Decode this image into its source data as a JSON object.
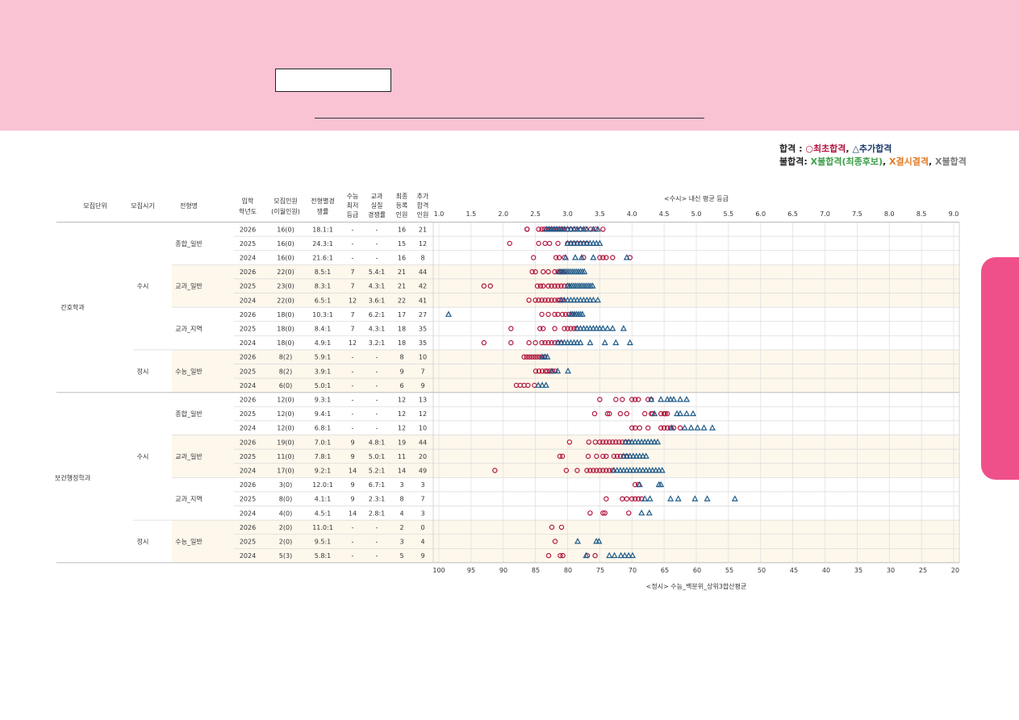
{
  "legend": {
    "pass_label": "합격",
    "pass_sep": " :",
    "circle_symbol": "○",
    "initial_pass": "최초합격",
    "comma": ",",
    "triangle_symbol": "△",
    "additional_pass": "추가합격",
    "fail_label": "불합격:",
    "fail_waitlist": "X불합격(최종후보)",
    "fail_absent": "X결시결격",
    "fail_plain": "X불합격"
  },
  "table": {
    "headers": {
      "unit": "모집단위",
      "period": "모집시기",
      "type": "전형명",
      "year": [
        "입학",
        "학년도"
      ],
      "quota": [
        "모집인원",
        "(이월인원)"
      ],
      "ratio": [
        "전형별경",
        "쟁률"
      ],
      "minimum": [
        "수능",
        "최저",
        "등급"
      ],
      "real_ratio": [
        "교과",
        "실질",
        "경쟁률"
      ],
      "final": [
        "최종",
        "등록",
        "인원"
      ],
      "additional": [
        "추가",
        "합격",
        "인원"
      ]
    },
    "departments": [
      {
        "name": "간호학과",
        "periods": [
          {
            "name": "수시",
            "types": [
              {
                "name": "종합_일반",
                "rows": [
                  {
                    "year": "2026",
                    "quota": "16(0)",
                    "ratio": "18.1:1",
                    "min": "-",
                    "real": "-",
                    "final": "16",
                    "add": "21"
                  },
                  {
                    "year": "2025",
                    "quota": "16(0)",
                    "ratio": "24.3:1",
                    "min": "-",
                    "real": "-",
                    "final": "15",
                    "add": "12"
                  },
                  {
                    "year": "2024",
                    "quota": "16(0)",
                    "ratio": "21.6:1",
                    "min": "-",
                    "real": "-",
                    "final": "16",
                    "add": "8"
                  }
                ]
              },
              {
                "name": "교과_일반",
                "rows": [
                  {
                    "year": "2026",
                    "quota": "22(0)",
                    "ratio": "8.5:1",
                    "min": "7",
                    "real": "5.4:1",
                    "final": "21",
                    "add": "44"
                  },
                  {
                    "year": "2025",
                    "quota": "23(0)",
                    "ratio": "8.3:1",
                    "min": "7",
                    "real": "4.3:1",
                    "final": "21",
                    "add": "42"
                  },
                  {
                    "year": "2024",
                    "quota": "22(0)",
                    "ratio": "6.5:1",
                    "min": "12",
                    "real": "3.6:1",
                    "final": "22",
                    "add": "41"
                  }
                ]
              },
              {
                "name": "교과_지역",
                "rows": [
                  {
                    "year": "2026",
                    "quota": "18(0)",
                    "ratio": "10.3:1",
                    "min": "7",
                    "real": "6.2:1",
                    "final": "17",
                    "add": "27"
                  },
                  {
                    "year": "2025",
                    "quota": "18(0)",
                    "ratio": "8.4:1",
                    "min": "7",
                    "real": "4.3:1",
                    "final": "18",
                    "add": "35"
                  },
                  {
                    "year": "2024",
                    "quota": "18(0)",
                    "ratio": "4.9:1",
                    "min": "12",
                    "real": "3.2:1",
                    "final": "18",
                    "add": "35"
                  }
                ]
              }
            ]
          },
          {
            "name": "정시",
            "types": [
              {
                "name": "수능_일반",
                "rows": [
                  {
                    "year": "2026",
                    "quota": "8(2)",
                    "ratio": "5.9:1",
                    "min": "-",
                    "real": "-",
                    "final": "8",
                    "add": "10"
                  },
                  {
                    "year": "2025",
                    "quota": "8(2)",
                    "ratio": "3.9:1",
                    "min": "-",
                    "real": "-",
                    "final": "9",
                    "add": "7"
                  },
                  {
                    "year": "2024",
                    "quota": "6(0)",
                    "ratio": "5.0:1",
                    "min": "-",
                    "real": "-",
                    "final": "6",
                    "add": "9"
                  }
                ]
              }
            ]
          }
        ]
      },
      {
        "name": "보건행정학과",
        "periods": [
          {
            "name": "수시",
            "types": [
              {
                "name": "종합_일반",
                "rows": [
                  {
                    "year": "2026",
                    "quota": "12(0)",
                    "ratio": "9.3:1",
                    "min": "-",
                    "real": "-",
                    "final": "12",
                    "add": "13"
                  },
                  {
                    "year": "2025",
                    "quota": "12(0)",
                    "ratio": "9.4:1",
                    "min": "-",
                    "real": "-",
                    "final": "12",
                    "add": "12"
                  },
                  {
                    "year": "2024",
                    "quota": "12(0)",
                    "ratio": "6.8:1",
                    "min": "-",
                    "real": "-",
                    "final": "12",
                    "add": "10"
                  }
                ]
              },
              {
                "name": "교과_일반",
                "rows": [
                  {
                    "year": "2026",
                    "quota": "19(0)",
                    "ratio": "7.0:1",
                    "min": "9",
                    "real": "4.8:1",
                    "final": "19",
                    "add": "44"
                  },
                  {
                    "year": "2025",
                    "quota": "11(0)",
                    "ratio": "7.8:1",
                    "min": "9",
                    "real": "5.0:1",
                    "final": "11",
                    "add": "20"
                  },
                  {
                    "year": "2024",
                    "quota": "17(0)",
                    "ratio": "9.2:1",
                    "min": "14",
                    "real": "5.2:1",
                    "final": "14",
                    "add": "49"
                  }
                ]
              },
              {
                "name": "교과_지역",
                "rows": [
                  {
                    "year": "2026",
                    "quota": "3(0)",
                    "ratio": "12.0:1",
                    "min": "9",
                    "real": "6.7:1",
                    "final": "3",
                    "add": "3"
                  },
                  {
                    "year": "2025",
                    "quota": "8(0)",
                    "ratio": "4.1:1",
                    "min": "9",
                    "real": "2.3:1",
                    "final": "8",
                    "add": "7"
                  },
                  {
                    "year": "2024",
                    "quota": "4(0)",
                    "ratio": "4.5:1",
                    "min": "14",
                    "real": "2.8:1",
                    "final": "4",
                    "add": "3"
                  }
                ]
              }
            ]
          },
          {
            "name": "정시",
            "types": [
              {
                "name": "수능_일반",
                "rows": [
                  {
                    "year": "2026",
                    "quota": "2(0)",
                    "ratio": "11.0:1",
                    "min": "-",
                    "real": "-",
                    "final": "2",
                    "add": "0"
                  },
                  {
                    "year": "2025",
                    "quota": "2(0)",
                    "ratio": "9.5:1",
                    "min": "-",
                    "real": "-",
                    "final": "3",
                    "add": "4"
                  },
                  {
                    "year": "2024",
                    "quota": "5(3)",
                    "ratio": "5.8:1",
                    "min": "-",
                    "real": "-",
                    "final": "5",
                    "add": "9"
                  }
                ]
              }
            ]
          }
        ]
      }
    ]
  },
  "colors": {
    "banner": "#f9c3d4",
    "side_tab": "#f0508a",
    "initial_pass": "#b0173e",
    "additional_pass": "#1f5b8a",
    "band": "#fdf7ec"
  },
  "chart_data": {
    "type": "scatter",
    "title": "<수시> 내신 평균 등급",
    "xlabel_bottom": "<정시> 수능_백분위_상위3합산평균",
    "top_axis": {
      "min": 1.0,
      "max": 9.0,
      "ticks": [
        "1.0",
        "1.5",
        "2.0",
        "2.5",
        "3.0",
        "3.5",
        "4.0",
        "4.5",
        "5.0",
        "5.5",
        "6.0",
        "6.5",
        "7.0",
        "7.5",
        "8.0",
        "8.5",
        "9.0"
      ]
    },
    "bottom_axis": {
      "min": 100,
      "max": 20,
      "ticks": [
        "100",
        "95",
        "90",
        "85",
        "80",
        "75",
        "70",
        "65",
        "60",
        "55",
        "50",
        "45",
        "40",
        "35",
        "30",
        "25",
        "20"
      ]
    },
    "grid": true,
    "row_units": "suspi rows in 내신 grade (top axis); jeongsi rows in 백분위 (bottom axis)",
    "rows": [
      {
        "label": "간호학과 수시 종합_일반 2026",
        "initial": [
          2.95,
          2.37,
          2.37,
          2.55,
          2.6,
          2.64,
          2.68,
          2.72,
          2.76,
          2.8,
          2.84,
          2.88,
          2.92,
          3.0,
          3.05,
          3.12,
          3.2,
          3.28,
          3.36,
          3.44,
          3.55
        ],
        "additional": [
          2.67,
          2.71,
          2.75,
          2.79,
          2.83,
          2.87,
          2.91,
          2.95,
          3.0,
          3.05,
          3.1,
          3.15,
          3.2,
          3.25,
          3.3,
          3.4,
          3.47
        ]
      },
      {
        "label": "간호학과 수시 종합_일반 2025",
        "initial": [
          2.1,
          2.55,
          2.65,
          2.72,
          2.85,
          3.0,
          3.05,
          3.1,
          3.15,
          3.2,
          3.25,
          3.3
        ],
        "additional": [
          3.0,
          3.05,
          3.1,
          3.15,
          3.2,
          3.25,
          3.3,
          3.35,
          3.4,
          3.45,
          3.5
        ]
      },
      {
        "label": "간호학과 수시 종합_일반 2024",
        "initial": [
          2.47,
          2.82,
          2.87,
          2.95,
          3.25,
          3.5,
          3.55,
          3.6,
          3.7,
          3.97
        ],
        "additional": [
          2.97,
          3.12,
          3.22,
          3.4,
          3.92
        ]
      },
      {
        "label": "간호학과 수시 교과_일반 2026",
        "initial": [
          2.45,
          2.5,
          2.62,
          2.7,
          2.8,
          2.85,
          2.88,
          2.9,
          2.92,
          2.95
        ],
        "additional": [
          2.87,
          2.9,
          2.93,
          2.96,
          2.99,
          3.02,
          3.05,
          3.08,
          3.11,
          3.14,
          3.17,
          3.2,
          3.23,
          3.26
        ]
      },
      {
        "label": "간호학과 수시 교과_일반 2025",
        "initial": [
          1.7,
          1.8,
          2.53,
          2.58,
          2.62,
          2.7,
          2.75,
          2.8,
          2.85,
          2.9,
          2.95,
          3.0
        ],
        "additional": [
          3.0,
          3.03,
          3.06,
          3.09,
          3.12,
          3.15,
          3.18,
          3.21,
          3.24,
          3.27,
          3.3,
          3.33,
          3.36,
          3.39
        ]
      },
      {
        "label": "간호학과 수시 교과_일반 2024",
        "initial": [
          2.4,
          2.5,
          2.55,
          2.6,
          2.65,
          2.7,
          2.75,
          2.8,
          2.85,
          2.88,
          2.92
        ],
        "additional": [
          2.9,
          2.95,
          3.0,
          3.05,
          3.1,
          3.15,
          3.2,
          3.25,
          3.3,
          3.35,
          3.4,
          3.47
        ]
      },
      {
        "label": "간호학과 수시 교과_지역 2026",
        "initial": [
          2.6,
          2.7,
          2.8,
          2.85,
          2.92,
          2.97,
          3.02,
          3.06,
          3.08
        ],
        "additional": [
          1.15,
          3.05,
          3.08,
          3.11,
          3.14,
          3.17,
          3.2,
          3.23
        ]
      },
      {
        "label": "간호학과 수시 교과_지역 2025",
        "initial": [
          2.12,
          2.57,
          2.62,
          2.8,
          2.95,
          3.0,
          3.05,
          3.1,
          3.14
        ],
        "additional": [
          3.15,
          3.2,
          3.25,
          3.3,
          3.35,
          3.4,
          3.45,
          3.5,
          3.55,
          3.62,
          3.7,
          3.87
        ]
      },
      {
        "label": "간호학과 수시 교과_지역 2024",
        "initial": [
          1.7,
          2.12,
          2.4,
          2.5,
          2.6,
          2.65,
          2.7,
          2.75,
          2.8,
          2.85,
          2.9
        ],
        "additional": [
          2.85,
          2.9,
          2.95,
          3.0,
          3.05,
          3.1,
          3.15,
          3.2,
          3.35,
          3.58,
          3.75,
          3.97
        ]
      },
      {
        "label": "간호학과 정시 수능_일반 2026",
        "initial": [
          86.8,
          86.4,
          86.0,
          85.6,
          85.2,
          84.8,
          84.4,
          84.0,
          83.6
        ],
        "additional": [
          84.0,
          83.6,
          83.2
        ]
      },
      {
        "label": "간호학과 정시 수능_일반 2025",
        "initial": [
          85.0,
          84.5,
          84.0,
          83.5,
          83.2,
          82.8,
          82.4,
          82.0
        ],
        "additional": [
          82.5,
          81.6,
          80.0
        ]
      },
      {
        "label": "간호학과 정시 수능_일반 2024",
        "initial": [
          88.0,
          87.4,
          86.8,
          86.2,
          85.2
        ],
        "additional": [
          84.6,
          84.0,
          83.4
        ]
      },
      {
        "label": "보건행정학과 수시 종합_일반 2026",
        "initial": [
          3.5,
          3.75,
          3.85,
          4.0,
          4.05,
          4.1,
          4.25,
          4.3
        ],
        "additional": [
          4.3,
          4.45,
          4.55,
          4.6,
          4.65,
          4.75,
          4.85
        ]
      },
      {
        "label": "보건행정학과 수시 종합_일반 2025",
        "initial": [
          3.42,
          3.62,
          3.65,
          3.82,
          3.92,
          4.2,
          4.3,
          4.32,
          4.45,
          4.5,
          4.52,
          4.55
        ],
        "additional": [
          4.35,
          4.7,
          4.75,
          4.85,
          4.95
        ]
      },
      {
        "label": "보건행정학과 수시 종합_일반 2024",
        "initial": [
          4.0,
          4.05,
          4.12,
          4.25,
          4.45,
          4.5,
          4.55,
          4.6,
          4.65,
          4.75
        ],
        "additional": [
          4.62,
          4.82,
          4.92,
          5.02,
          5.12,
          5.25
        ]
      },
      {
        "label": "보건행정학과 수시 교과_일반 2026",
        "initial": [
          3.03,
          3.33,
          3.43,
          3.5,
          3.55,
          3.6,
          3.65,
          3.7,
          3.75,
          3.8,
          3.85,
          3.9,
          3.95
        ],
        "additional": [
          3.9,
          3.95,
          4.0,
          4.05,
          4.1,
          4.15,
          4.2,
          4.25,
          4.3,
          4.35,
          4.4
        ]
      },
      {
        "label": "보건행정학과 수시 교과_일반 2025",
        "initial": [
          2.88,
          2.92,
          3.32,
          3.45,
          3.55,
          3.6,
          3.72,
          3.77,
          3.82,
          3.87,
          3.92
        ],
        "additional": [
          3.87,
          3.92,
          3.97,
          4.02,
          4.07,
          4.12,
          4.17,
          4.22
        ]
      },
      {
        "label": "보건행정학과 수시 교과_일반 2024",
        "initial": [
          1.87,
          2.98,
          3.15,
          3.3,
          3.35,
          3.4,
          3.45,
          3.5,
          3.55,
          3.6,
          3.65,
          3.7
        ],
        "additional": [
          3.72,
          3.77,
          3.82,
          3.87,
          3.92,
          3.97,
          4.02,
          4.07,
          4.12,
          4.17,
          4.22,
          4.27,
          4.32,
          4.37,
          4.42,
          4.47
        ]
      },
      {
        "label": "보건행정학과 수시 교과_지역 2026",
        "initial": [
          4.05,
          4.1
        ],
        "additional": [
          4.12,
          4.42,
          4.45
        ]
      },
      {
        "label": "보건행정학과 수시 교과_지역 2025",
        "initial": [
          3.6,
          3.85,
          3.92,
          4.0,
          4.05,
          4.1,
          4.15
        ],
        "additional": [
          4.2,
          4.28,
          4.6,
          4.72,
          4.98,
          5.17,
          5.6
        ]
      },
      {
        "label": "보건행정학과 수시 교과_지역 2024",
        "initial": [
          3.35,
          3.55,
          3.58,
          3.95
        ],
        "additional": [
          4.15,
          4.27
        ]
      },
      {
        "label": "보건행정학과 정시 수능_일반 2026",
        "initial": [
          82.5,
          81.0
        ],
        "additional": []
      },
      {
        "label": "보건행정학과 정시 수능_일반 2025",
        "initial": [
          82.0
        ],
        "additional": [
          78.5,
          75.6,
          75.2
        ]
      },
      {
        "label": "보건행정학과 정시 수능_일반 2024",
        "initial": [
          83.0,
          81.2,
          80.8,
          77.0,
          75.8
        ],
        "additional": [
          77.2,
          73.6,
          72.8,
          71.8,
          71.2,
          70.6,
          70.0
        ]
      }
    ]
  }
}
